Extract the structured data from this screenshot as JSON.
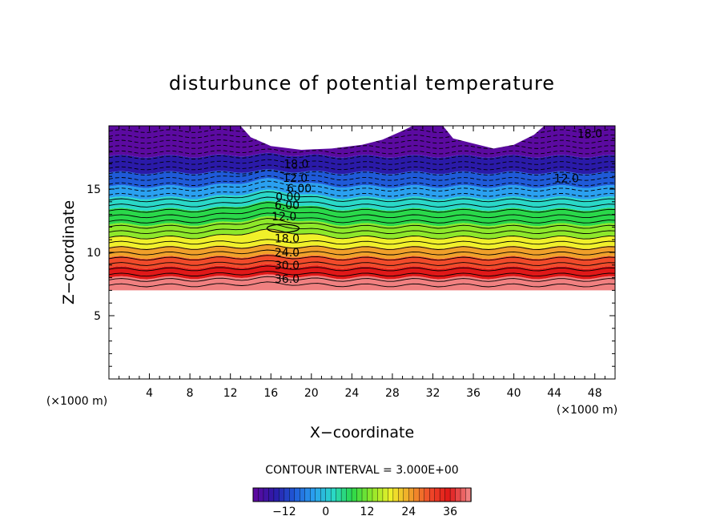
{
  "chart_data": {
    "type": "contour",
    "title": "disturbunce of potential temperature",
    "xlabel": "X−coordinate",
    "ylabel": "Z−coordinate",
    "x_unit": "(×1000 m)",
    "y_unit": "(×1000 m)",
    "xlim": [
      0,
      50
    ],
    "ylim": [
      0,
      20
    ],
    "x_ticks": [
      "4",
      "8",
      "12",
      "16",
      "20",
      "24",
      "28",
      "32",
      "36",
      "40",
      "44",
      "48"
    ],
    "y_ticks": [
      "5",
      "10",
      "15"
    ],
    "contour_interval_text": "CONTOUR INTERVAL = 3.000E+00",
    "colorbar": {
      "range": [
        -21,
        42
      ],
      "ticks": [
        "−12",
        "0",
        "12",
        "24",
        "36"
      ],
      "colors": [
        "#5b0aa0",
        "#2a1aa8",
        "#1f5ad8",
        "#2aa0f0",
        "#2ad8c8",
        "#2ad84a",
        "#8ee82a",
        "#f0f02a",
        "#f0a02a",
        "#f04a2a",
        "#e01818",
        "#f08080"
      ]
    },
    "contour_labels": [
      {
        "text": "18.0",
        "x": 18.5,
        "z": 17.0
      },
      {
        "text": "12.0",
        "x": 18.4,
        "z": 15.9
      },
      {
        "text": "6.00",
        "x": 18.8,
        "z": 15.05
      },
      {
        "text": "0.00",
        "x": 17.7,
        "z": 14.4
      },
      {
        "text": "6.00",
        "x": 17.6,
        "z": 13.75
      },
      {
        "text": "12.0",
        "x": 17.3,
        "z": 12.85
      },
      {
        "text": "18.0",
        "x": 17.6,
        "z": 11.1
      },
      {
        "text": "24.0",
        "x": 17.6,
        "z": 10.0
      },
      {
        "text": "30.0",
        "x": 17.6,
        "z": 9.0
      },
      {
        "text": "36.0",
        "x": 17.6,
        "z": 7.9
      },
      {
        "text": "12.0",
        "x": 45.2,
        "z": 15.85
      },
      {
        "text": "18.0",
        "x": 47.5,
        "z": 19.4
      }
    ],
    "field_bands": [
      {
        "z": [
          7.0,
          8.0
        ],
        "value": 39,
        "color": "#f08080"
      },
      {
        "z": [
          8.0,
          8.8
        ],
        "value": 34,
        "color": "#e01818"
      },
      {
        "z": [
          8.8,
          9.6
        ],
        "value": 30,
        "color": "#f04a2a"
      },
      {
        "z": [
          9.6,
          10.4
        ],
        "value": 26,
        "color": "#f0a02a"
      },
      {
        "z": [
          10.4,
          11.2
        ],
        "value": 22,
        "color": "#f0f02a"
      },
      {
        "z": [
          11.2,
          12.2
        ],
        "value": 18,
        "color": "#8ee82a"
      },
      {
        "z": [
          12.2,
          13.4
        ],
        "value": 12,
        "color": "#2ad84a"
      },
      {
        "z": [
          13.4,
          14.3
        ],
        "value": 6,
        "color": "#2ad8c8"
      },
      {
        "z": [
          14.3,
          15.2
        ],
        "value": 0,
        "color": "#2aa0f0"
      },
      {
        "z": [
          15.2,
          16.3
        ],
        "value": -6,
        "color": "#1f5ad8"
      },
      {
        "z": [
          16.3,
          17.6
        ],
        "value": -12,
        "color": "#2a1aa8"
      },
      {
        "z": [
          17.6,
          20.0
        ],
        "value": -18,
        "color": "#5b0aa0"
      }
    ]
  },
  "colors": {
    "background": "#ffffff",
    "axis": "#000000"
  }
}
